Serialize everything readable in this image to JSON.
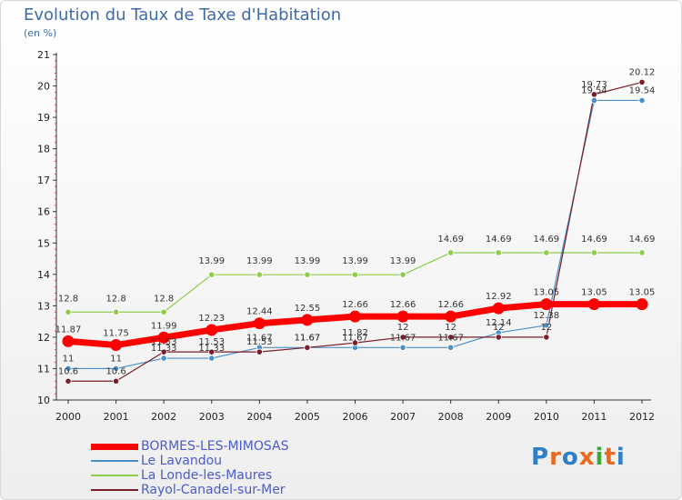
{
  "title": "Evolution du Taux de Taxe d'Habitation",
  "unit": "(en %)",
  "logo": {
    "text": "Proxiti",
    "letter_colors": [
      "#2f7fc8",
      "#e86a1f",
      "#2f7fc8",
      "#e86a1f",
      "#3aaa35",
      "#e86a1f",
      "#2f7fc8"
    ]
  },
  "chart_data": {
    "type": "line",
    "title": "Evolution du Taux de Taxe d'Habitation",
    "ylabel": "(en %)",
    "xlabel": "",
    "x": [
      "2000",
      "2001",
      "2002",
      "2003",
      "2004",
      "2005",
      "2006",
      "2007",
      "2008",
      "2009",
      "2010",
      "2011",
      "2012"
    ],
    "ylim": [
      10,
      21
    ],
    "yticks": [
      "10",
      "11",
      "12",
      "13",
      "14",
      "15",
      "16",
      "17",
      "18",
      "19",
      "20",
      "21"
    ],
    "grid": false,
    "legend_position": "bottom-left",
    "series": [
      {
        "name": "BORMES-LES-MIMOSAS",
        "color": "#ff0000",
        "values": [
          11.87,
          11.75,
          11.99,
          12.23,
          12.44,
          12.55,
          12.66,
          12.66,
          12.66,
          12.92,
          13.05,
          13.05,
          13.05
        ],
        "labels": [
          "11.87",
          "11.75",
          "11.99",
          "12.23",
          "12.44",
          "12.55",
          "12.66",
          "12.66",
          "12.66",
          "12.92",
          "13.05",
          "13.05",
          "13.05"
        ]
      },
      {
        "name": "Le Lavandou",
        "color": "#4a90c8",
        "values": [
          11,
          11,
          11.33,
          11.33,
          11.67,
          11.67,
          11.67,
          11.67,
          11.67,
          12.14,
          12.38,
          19.54,
          19.54
        ],
        "labels": [
          "11",
          "11",
          "11.33",
          "11.33",
          "11.67",
          "11.67",
          "11.67",
          "11.67",
          "11.67",
          "12.14",
          "12.38",
          "19.54",
          "19.54"
        ]
      },
      {
        "name": "La Londe-les-Maures",
        "color": "#8ccd4a",
        "values": [
          12.8,
          12.8,
          12.8,
          13.99,
          13.99,
          13.99,
          13.99,
          13.99,
          14.69,
          14.69,
          14.69,
          14.69,
          14.69
        ],
        "labels": [
          "12.8",
          "12.8",
          "12.8",
          "13.99",
          "13.99",
          "13.99",
          "13.99",
          "13.99",
          "14.69",
          "14.69",
          "14.69",
          "14.69",
          "14.69"
        ]
      },
      {
        "name": "Rayol-Canadel-sur-Mer",
        "color": "#7a1e2a",
        "values": [
          10.6,
          10.6,
          11.53,
          11.53,
          11.53,
          11.67,
          11.82,
          12,
          12,
          12,
          12,
          19.73,
          20.12
        ],
        "labels": [
          "10.6",
          "10.6",
          "11.53",
          "11.53",
          "11.53",
          "11.67",
          "11.82",
          "12",
          "12",
          "12",
          "12",
          "19.73",
          "20.12"
        ]
      }
    ]
  }
}
